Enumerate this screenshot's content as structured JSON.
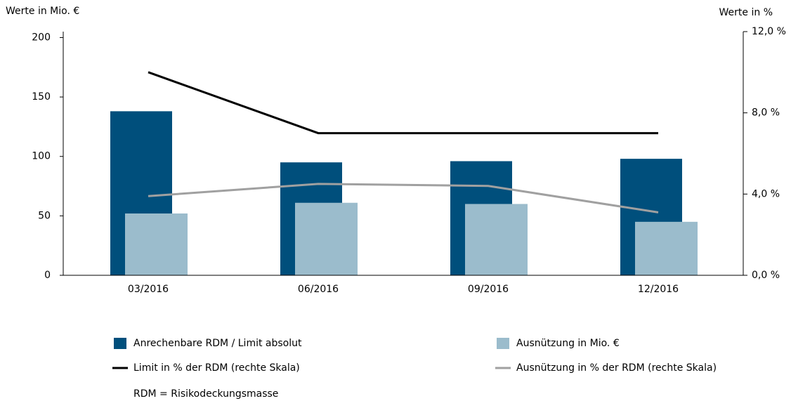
{
  "chart_data": {
    "type": "bar",
    "y_label": "Werte in Mio. €",
    "y2_label": "Werte in %",
    "categories": [
      "03/2016",
      "06/2016",
      "09/2016",
      "12/2016"
    ],
    "series": [
      {
        "name": "Anrechenbare RDM / Limit absolut",
        "type": "bar",
        "color": "#004f7c",
        "values": [
          138,
          95,
          96,
          98
        ]
      },
      {
        "name": "Ausnützung in Mio. €",
        "type": "bar",
        "color": "#9bbccc",
        "values": [
          52,
          61,
          60,
          45
        ]
      },
      {
        "name": "Limit in % der RDM (rechte Skala)",
        "type": "line",
        "axis": "y2",
        "color": "#000000",
        "values": [
          10.0,
          7.0,
          7.0,
          7.0
        ]
      },
      {
        "name": "Ausnützung in % der RDM (rechte Skala)",
        "type": "line",
        "axis": "y2",
        "color": "#a0a0a0",
        "values": [
          3.9,
          4.5,
          4.4,
          3.1
        ]
      }
    ],
    "ylim": [
      0,
      205
    ],
    "yticks": [
      0,
      50,
      100,
      150,
      200
    ],
    "y2lim": [
      0,
      12
    ],
    "y2ticks": [
      {
        "value": 0,
        "label": "0,0 %"
      },
      {
        "value": 4,
        "label": "4,0 %"
      },
      {
        "value": 8,
        "label": "8,0 %"
      },
      {
        "value": 12,
        "label": "12,0 %"
      }
    ],
    "note": "RDM = Risikodeckungsmasse"
  }
}
